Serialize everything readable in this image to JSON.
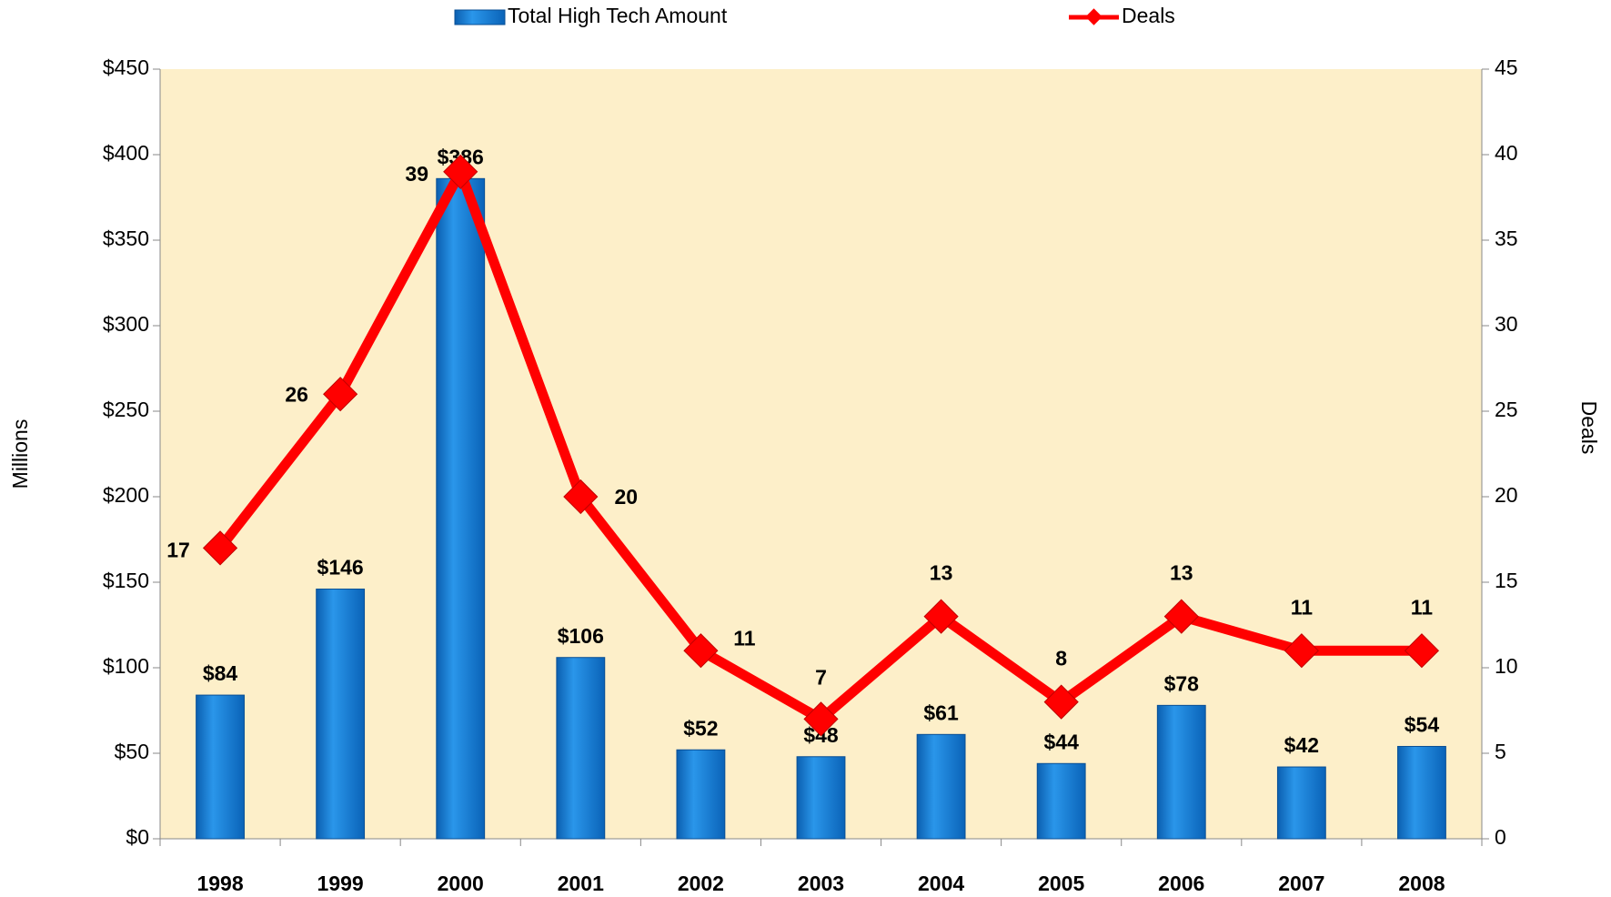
{
  "chart_data": {
    "type": "bar",
    "categories": [
      "1998",
      "1999",
      "2000",
      "2001",
      "2002",
      "2003",
      "2004",
      "2005",
      "2006",
      "2007",
      "2008"
    ],
    "series": [
      {
        "name": "Total High Tech Amount",
        "type": "bar",
        "color": "#1a7fd6",
        "values": [
          84,
          146,
          386,
          106,
          52,
          48,
          61,
          44,
          78,
          42,
          54
        ],
        "value_labels": [
          "$84",
          "$146",
          "$386",
          "$106",
          "$52",
          "$48",
          "$61",
          "$44",
          "$78",
          "$42",
          "$54"
        ]
      },
      {
        "name": "Deals",
        "type": "line",
        "axis": "y2",
        "color": "#ff0000",
        "values": [
          17,
          26,
          39,
          20,
          11,
          7,
          13,
          8,
          13,
          11,
          11
        ]
      }
    ],
    "ylabel": "Millions",
    "y2label": "Deals",
    "ylim": [
      0,
      450
    ],
    "yticks": [
      {
        "value": 0,
        "label": "$0"
      },
      {
        "value": 50,
        "label": "$50"
      },
      {
        "value": 100,
        "label": "$100"
      },
      {
        "value": 150,
        "label": "$150"
      },
      {
        "value": 200,
        "label": "$200"
      },
      {
        "value": 250,
        "label": "$250"
      },
      {
        "value": 300,
        "label": "$300"
      },
      {
        "value": 350,
        "label": "$350"
      },
      {
        "value": 400,
        "label": "$400"
      },
      {
        "value": 450,
        "label": "$450"
      }
    ],
    "y2lim": [
      0,
      45
    ],
    "y2ticks": [
      0,
      5,
      10,
      15,
      20,
      25,
      30,
      35,
      40,
      45
    ],
    "legend": "top",
    "background": "#fdefc9"
  }
}
